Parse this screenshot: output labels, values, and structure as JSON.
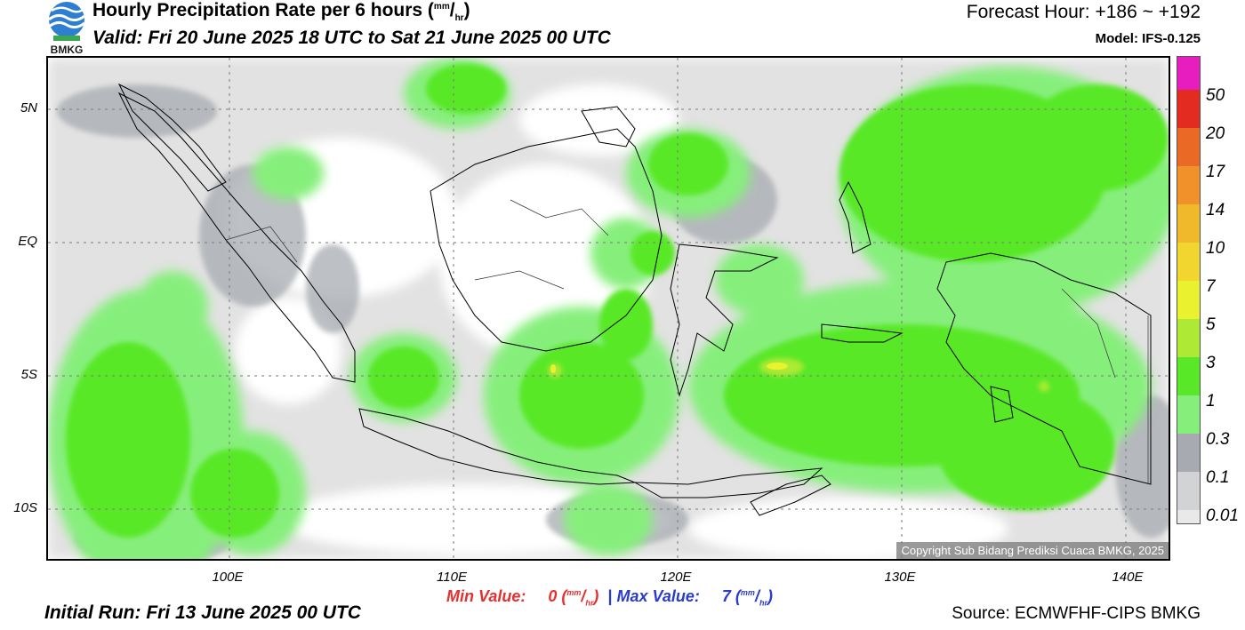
{
  "header": {
    "title": "Hourly Precipitation Rate per 6 hours",
    "unit_numerator": "mm",
    "unit_denominator": "hr",
    "valid": "Valid: Fri 20 June 2025 18 UTC to Sat 21 June 2025 00 UTC",
    "forecast_hour": "Forecast Hour: +186 ~ +192",
    "model": "Model: IFS-0.125",
    "logo_text": "BMKG"
  },
  "map": {
    "lat_labels": [
      "5N",
      "EQ",
      "5S",
      "10S"
    ],
    "lon_labels": [
      "100E",
      "110E",
      "120E",
      "130E",
      "140E"
    ],
    "copyright": "Copyright Sub Bidang Prediksi Cuaca BMKG, 2025"
  },
  "legend": {
    "labels": [
      "50",
      "20",
      "17",
      "14",
      "10",
      "7",
      "5",
      "3",
      "1",
      "0.3",
      "0.1",
      "0.01"
    ],
    "colors": [
      "#e81dbf",
      "#e32b22",
      "#ea6a25",
      "#f0912a",
      "#f0b82b",
      "#f0d62f",
      "#eaf230",
      "#aee936",
      "#58e827",
      "#86ef7c",
      "#a7abb1",
      "#d1d3d5",
      "#e9e9e9"
    ]
  },
  "footer": {
    "min_label": "Min Value:",
    "min_value": "0",
    "separator": "|",
    "max_label": "Max Value:",
    "max_value": "7",
    "unit_numerator": "mm",
    "unit_denominator": "hr",
    "initial_run": "Initial Run: Fri 13 June 2025 00 UTC",
    "source": "Source: ECMWFHF-CIPS BMKG"
  }
}
